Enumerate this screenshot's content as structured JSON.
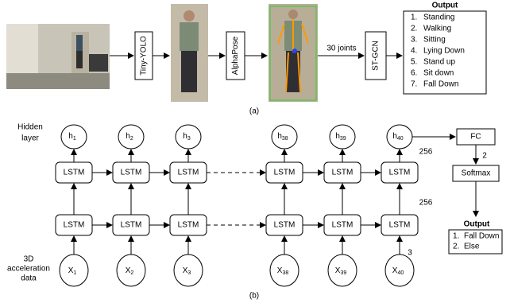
{
  "pipeline": {
    "stages": [
      "Tiny-YOLO",
      "AlphaPose",
      "ST-GCN"
    ],
    "edge_label": "30 joints",
    "output": {
      "title": "Output",
      "items": [
        {
          "number": "1.",
          "text": "Standing"
        },
        {
          "number": "2.",
          "text": "Walking"
        },
        {
          "number": "3.",
          "text": "Sitting"
        },
        {
          "number": "4.",
          "text": "Lying Down"
        },
        {
          "number": "5.",
          "text": "Stand up"
        },
        {
          "number": "6.",
          "text": "Sit down"
        },
        {
          "number": "7.",
          "text": "Fall Down"
        }
      ]
    },
    "caption": "(a)"
  },
  "lstm": {
    "hidden_label": [
      "Hidden",
      "layer"
    ],
    "input_label": [
      "3D",
      "acceleration",
      "data"
    ],
    "hidden": [
      {
        "symbol": "h",
        "index": "1"
      },
      {
        "symbol": "h",
        "index": "2"
      },
      {
        "symbol": "h",
        "index": "3"
      },
      {
        "symbol": "h",
        "index": "38"
      },
      {
        "symbol": "h",
        "index": "39"
      },
      {
        "symbol": "h",
        "index": "40"
      }
    ],
    "cell": "LSTM",
    "inputs": [
      {
        "symbol": "X",
        "index": "1"
      },
      {
        "symbol": "X",
        "index": "2"
      },
      {
        "symbol": "X",
        "index": "3"
      },
      {
        "symbol": "X",
        "index": "38"
      },
      {
        "symbol": "X",
        "index": "39"
      },
      {
        "symbol": "X",
        "index": "40"
      }
    ],
    "dims": {
      "upper": "256",
      "lower": "256",
      "input": "3"
    },
    "fc": "FC",
    "fc_out": "2",
    "softmax": "Softmax",
    "output": {
      "title": "Output",
      "items": [
        {
          "number": "1.",
          "text": "Fall Down"
        },
        {
          "number": "2.",
          "text": "Else"
        }
      ]
    },
    "caption": "(b)"
  }
}
